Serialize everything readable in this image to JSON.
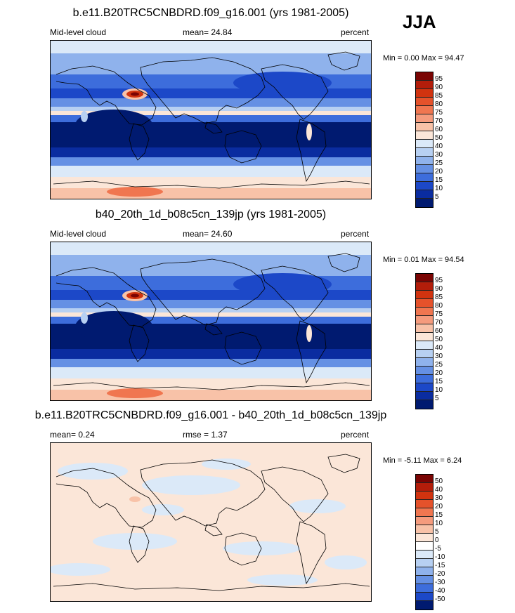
{
  "season": "JJA",
  "panels": [
    {
      "title": "b.e11.B20TRC5CNBDRD.f09_g16.001 (yrs 1981-2005)",
      "left_label": "Mid-level cloud",
      "center_label": "mean=  24.84",
      "units": "percent",
      "minmax": "Min =   0.00 Max =  94.47",
      "levels": [
        "95",
        "90",
        "85",
        "80",
        "75",
        "70",
        "60",
        "50",
        "40",
        "30",
        "25",
        "20",
        "15",
        "10",
        "5"
      ],
      "colors": [
        "#7a0403",
        "#b31d0a",
        "#d1330f",
        "#e5522b",
        "#f07650",
        "#f59b7d",
        "#f8c2a8",
        "#fbe6d8",
        "#dbe9f8",
        "#b7d0f2",
        "#8fb2ec",
        "#6590e4",
        "#3d6ddc",
        "#1c48c8",
        "#0a2ca0",
        "#001a70"
      ],
      "map_data": {
        "bands": [
          {
            "lat_range": [
              60,
              90
            ],
            "value_range": [
              25,
              50
            ]
          },
          {
            "lat_range": [
              25,
              60
            ],
            "value_range": [
              20,
              40
            ]
          },
          {
            "lat_range": [
              -25,
              25
            ],
            "value_range": [
              5,
              15
            ]
          },
          {
            "lat_range": [
              -60,
              -25
            ],
            "value_range": [
              30,
              50
            ]
          },
          {
            "lat_range": [
              -90,
              -60
            ],
            "value_range": [
              50,
              70
            ]
          }
        ],
        "features": [
          "Tibetan Plateau maximum (~90-95)",
          "Andes maximum"
        ]
      }
    },
    {
      "title": "b40_20th_1d_b08c5cn_139jp (yrs 1981-2005)",
      "left_label": "Mid-level cloud",
      "center_label": "mean=  24.60",
      "units": "percent",
      "minmax": "Min =   0.01 Max =  94.54",
      "levels": [
        "95",
        "90",
        "85",
        "80",
        "75",
        "70",
        "60",
        "50",
        "40",
        "30",
        "25",
        "20",
        "15",
        "10",
        "5"
      ],
      "colors": [
        "#7a0403",
        "#b31d0a",
        "#d1330f",
        "#e5522b",
        "#f07650",
        "#f59b7d",
        "#f8c2a8",
        "#fbe6d8",
        "#dbe9f8",
        "#b7d0f2",
        "#8fb2ec",
        "#6590e4",
        "#3d6ddc",
        "#1c48c8",
        "#0a2ca0",
        "#001a70"
      ],
      "map_data": {
        "bands": [
          {
            "lat_range": [
              60,
              90
            ],
            "value_range": [
              25,
              50
            ]
          },
          {
            "lat_range": [
              25,
              60
            ],
            "value_range": [
              20,
              40
            ]
          },
          {
            "lat_range": [
              -25,
              25
            ],
            "value_range": [
              5,
              15
            ]
          },
          {
            "lat_range": [
              -60,
              -25
            ],
            "value_range": [
              30,
              50
            ]
          },
          {
            "lat_range": [
              -90,
              -60
            ],
            "value_range": [
              50,
              70
            ]
          }
        ],
        "features": [
          "Tibetan Plateau maximum (~90-95)",
          "Andes maximum"
        ]
      }
    },
    {
      "title": "b.e11.B20TRC5CNBDRD.f09_g16.001 - b40_20th_1d_b08c5cn_139jp",
      "left_label": "mean=   0.24",
      "center_label": "rmse =   1.37",
      "units": "percent",
      "minmax": "Min =  -5.11 Max =   6.24",
      "levels": [
        "50",
        "40",
        "30",
        "20",
        "15",
        "10",
        "5",
        "0",
        "-5",
        "-10",
        "-15",
        "-20",
        "-30",
        "-40",
        "-50"
      ],
      "colors": [
        "#7a0403",
        "#b31d0a",
        "#d1330f",
        "#e5522b",
        "#f07650",
        "#f59b7d",
        "#f8c2a8",
        "#fbe6d8",
        "#ffffff",
        "#dbe9f8",
        "#b7d0f2",
        "#8fb2ec",
        "#6590e4",
        "#3d6ddc",
        "#1c48c8",
        "#001a70"
      ],
      "map_data": {
        "pattern": "weak differences; mostly values between -5 and 5"
      }
    }
  ]
}
